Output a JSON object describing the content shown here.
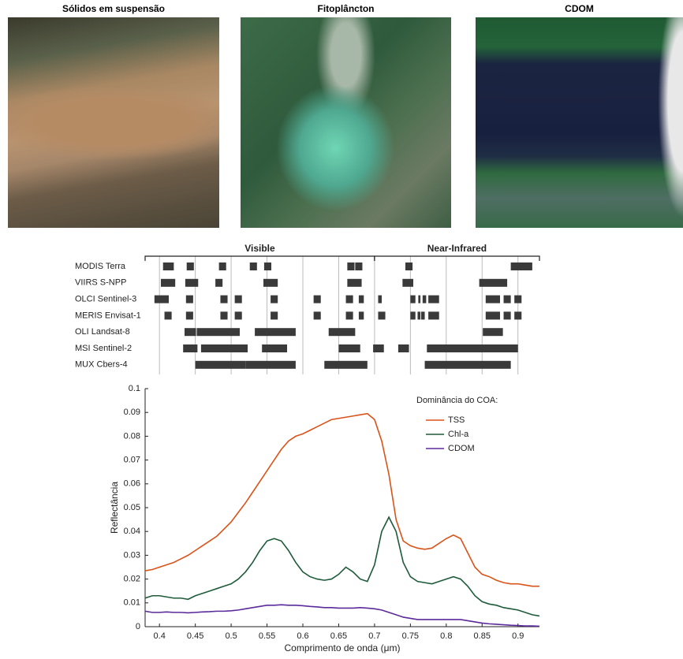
{
  "images": [
    {
      "title": "Sólidos em suspensão"
    },
    {
      "title": "Fitoplâncton"
    },
    {
      "title": "CDOM"
    }
  ],
  "chart_data": [
    {
      "type": "range",
      "grid": true,
      "regions": [
        {
          "label": "Visible",
          "range": [
            0.38,
            0.7
          ]
        },
        {
          "label": "Near-Infrared",
          "range": [
            0.7,
            0.93
          ]
        }
      ],
      "categories": [
        "MODIS Terra",
        "VIIRS S-NPP",
        "OLCI Sentinel-3",
        "MERIS Envisat-1",
        "OLI Landsat-8",
        "MSI Sentinel-2",
        "MUX Cbers-4"
      ],
      "color": "#3a3a3a",
      "bands": [
        [
          [
            0.405,
            0.42
          ],
          [
            0.438,
            0.448
          ],
          [
            0.483,
            0.493
          ],
          [
            0.526,
            0.536
          ],
          [
            0.546,
            0.556
          ],
          [
            0.662,
            0.672
          ],
          [
            0.673,
            0.683
          ],
          [
            0.743,
            0.753
          ],
          [
            0.89,
            0.92
          ]
        ],
        [
          [
            0.402,
            0.422
          ],
          [
            0.436,
            0.454
          ],
          [
            0.478,
            0.488
          ],
          [
            0.545,
            0.565
          ],
          [
            0.662,
            0.682
          ],
          [
            0.739,
            0.754
          ],
          [
            0.846,
            0.885
          ]
        ],
        [
          [
            0.393,
            0.413
          ],
          [
            0.437,
            0.447
          ],
          [
            0.485,
            0.495
          ],
          [
            0.505,
            0.515
          ],
          [
            0.555,
            0.565
          ],
          [
            0.615,
            0.625
          ],
          [
            0.66,
            0.67
          ],
          [
            0.678,
            0.685
          ],
          [
            0.705,
            0.71
          ],
          [
            0.75,
            0.757
          ],
          [
            0.761,
            0.764
          ],
          [
            0.767,
            0.772
          ],
          [
            0.775,
            0.79
          ],
          [
            0.855,
            0.875
          ],
          [
            0.88,
            0.89
          ],
          [
            0.895,
            0.905
          ]
        ],
        [
          [
            0.407,
            0.417
          ],
          [
            0.437,
            0.447
          ],
          [
            0.485,
            0.495
          ],
          [
            0.505,
            0.515
          ],
          [
            0.555,
            0.565
          ],
          [
            0.615,
            0.625
          ],
          [
            0.66,
            0.67
          ],
          [
            0.678,
            0.685
          ],
          [
            0.705,
            0.715
          ],
          [
            0.75,
            0.757
          ],
          [
            0.76,
            0.764
          ],
          [
            0.765,
            0.77
          ],
          [
            0.775,
            0.79
          ],
          [
            0.855,
            0.875
          ],
          [
            0.88,
            0.89
          ],
          [
            0.895,
            0.905
          ]
        ],
        [
          [
            0.435,
            0.451
          ],
          [
            0.452,
            0.512
          ],
          [
            0.533,
            0.59
          ],
          [
            0.636,
            0.673
          ],
          [
            0.851,
            0.879
          ]
        ],
        [
          [
            0.433,
            0.453
          ],
          [
            0.458,
            0.523
          ],
          [
            0.543,
            0.578
          ],
          [
            0.65,
            0.68
          ],
          [
            0.698,
            0.713
          ],
          [
            0.733,
            0.748
          ],
          [
            0.773,
            0.793
          ],
          [
            0.785,
            0.9
          ],
          [
            0.855,
            0.875
          ]
        ],
        [
          [
            0.45,
            0.52
          ],
          [
            0.52,
            0.59
          ],
          [
            0.63,
            0.69
          ],
          [
            0.77,
            0.89
          ]
        ]
      ]
    },
    {
      "type": "line",
      "xlabel": "Comprimento de onda (μm)",
      "ylabel": "Reflectância",
      "legend_title": "Dominância do COA:",
      "legend": "upper right",
      "xlim": [
        0.38,
        0.93
      ],
      "xticks": [
        0.4,
        0.45,
        0.5,
        0.55,
        0.6,
        0.65,
        0.7,
        0.75,
        0.8,
        0.85,
        0.9
      ],
      "ylim": [
        0,
        0.1
      ],
      "yticks": [
        0,
        0.01,
        0.02,
        0.03,
        0.04,
        0.05,
        0.06,
        0.07,
        0.08,
        0.09,
        0.1
      ],
      "x": [
        0.38,
        0.39,
        0.4,
        0.41,
        0.42,
        0.43,
        0.44,
        0.45,
        0.46,
        0.47,
        0.48,
        0.49,
        0.5,
        0.51,
        0.52,
        0.53,
        0.54,
        0.55,
        0.56,
        0.57,
        0.58,
        0.59,
        0.6,
        0.61,
        0.62,
        0.63,
        0.64,
        0.65,
        0.66,
        0.67,
        0.68,
        0.69,
        0.7,
        0.71,
        0.72,
        0.73,
        0.74,
        0.75,
        0.76,
        0.77,
        0.78,
        0.79,
        0.8,
        0.81,
        0.82,
        0.83,
        0.84,
        0.85,
        0.86,
        0.87,
        0.88,
        0.89,
        0.9,
        0.91,
        0.92,
        0.93
      ],
      "series": [
        {
          "name": "TSS",
          "color": "#d95319",
          "values": [
            0.0235,
            0.024,
            0.025,
            0.026,
            0.027,
            0.0285,
            0.03,
            0.032,
            0.034,
            0.036,
            0.038,
            0.041,
            0.044,
            0.048,
            0.052,
            0.0565,
            0.061,
            0.0655,
            0.07,
            0.0745,
            0.078,
            0.08,
            0.081,
            0.0825,
            0.084,
            0.0855,
            0.087,
            0.0875,
            0.088,
            0.0885,
            0.089,
            0.0895,
            0.087,
            0.078,
            0.064,
            0.045,
            0.036,
            0.034,
            0.033,
            0.0325,
            0.033,
            0.035,
            0.037,
            0.0385,
            0.037,
            0.031,
            0.025,
            0.022,
            0.021,
            0.0195,
            0.0185,
            0.018,
            0.018,
            0.0175,
            0.017,
            0.017
          ]
        },
        {
          "name": "Chl-a",
          "color": "#1e5b3a",
          "values": [
            0.012,
            0.013,
            0.013,
            0.0125,
            0.012,
            0.012,
            0.0115,
            0.013,
            0.014,
            0.015,
            0.016,
            0.017,
            0.018,
            0.02,
            0.023,
            0.027,
            0.032,
            0.036,
            0.037,
            0.036,
            0.032,
            0.027,
            0.023,
            0.021,
            0.02,
            0.0195,
            0.02,
            0.022,
            0.025,
            0.023,
            0.02,
            0.019,
            0.026,
            0.04,
            0.046,
            0.04,
            0.027,
            0.021,
            0.019,
            0.0185,
            0.018,
            0.019,
            0.02,
            0.021,
            0.02,
            0.017,
            0.013,
            0.0105,
            0.0095,
            0.009,
            0.008,
            0.0075,
            0.007,
            0.006,
            0.005,
            0.0045
          ]
        },
        {
          "name": "CDOM",
          "color": "#5b2a9b",
          "values": [
            0.0065,
            0.006,
            0.006,
            0.0062,
            0.006,
            0.006,
            0.0058,
            0.006,
            0.0062,
            0.0063,
            0.0065,
            0.0065,
            0.0067,
            0.007,
            0.0075,
            0.008,
            0.0085,
            0.009,
            0.009,
            0.0092,
            0.009,
            0.009,
            0.0088,
            0.0085,
            0.0083,
            0.008,
            0.008,
            0.0078,
            0.0078,
            0.0078,
            0.008,
            0.0078,
            0.0075,
            0.007,
            0.006,
            0.005,
            0.004,
            0.0035,
            0.003,
            0.003,
            0.003,
            0.003,
            0.003,
            0.003,
            0.003,
            0.0025,
            0.002,
            0.0015,
            0.0012,
            0.001,
            0.0008,
            0.0006,
            0.0005,
            0.0003,
            0.0003,
            0.0002
          ]
        }
      ]
    }
  ]
}
